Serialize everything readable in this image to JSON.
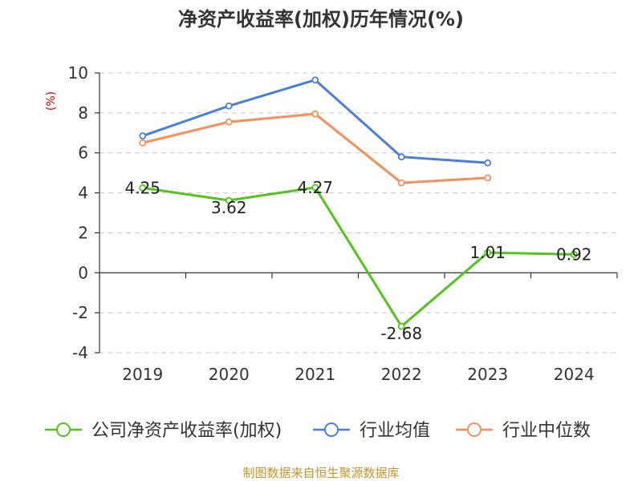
{
  "chart_data": {
    "type": "line",
    "title": "净资产收益率(加权)历年情况(%)",
    "ylabel": "(%)",
    "categories": [
      "2019",
      "2020",
      "2021",
      "2022",
      "2023",
      "2024"
    ],
    "ylim": [
      -4,
      10
    ],
    "yticks": [
      "10",
      "8",
      "6",
      "4",
      "2",
      "0",
      "-2",
      "-4"
    ],
    "ytick_values": [
      10,
      8,
      6,
      4,
      2,
      0,
      -2,
      -4
    ],
    "grid": true,
    "legend_position": "bottom",
    "series": [
      {
        "name": "公司净资产收益率(加权)",
        "color": "#52c41a",
        "values": [
          4.25,
          3.62,
          4.27,
          -2.68,
          1.01,
          0.92
        ],
        "labels": [
          "4.25",
          "3.62",
          "4.27",
          "-2.68",
          "1.01",
          "0.92"
        ]
      },
      {
        "name": "行业均值",
        "color": "#4a7fd6",
        "values": [
          6.85,
          8.35,
          9.65,
          5.8,
          5.5,
          null
        ]
      },
      {
        "name": "行业中位数",
        "color": "#f58f5c",
        "values": [
          6.5,
          7.55,
          7.95,
          4.5,
          4.75,
          null
        ]
      }
    ]
  },
  "unit_color": "#cc0000",
  "source_color": "#c8942a",
  "source": "制图数据来自恒生聚源数据库"
}
